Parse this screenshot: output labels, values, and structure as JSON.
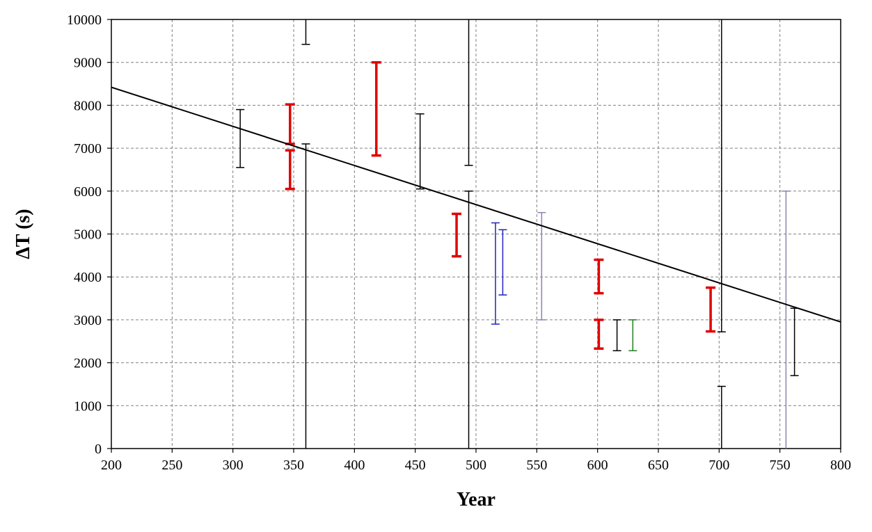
{
  "chart_data": {
    "type": "scatter",
    "title": "",
    "xlabel": "Year",
    "ylabel": "ΔT (s)",
    "xlim": [
      200,
      800
    ],
    "ylim": [
      0,
      10000
    ],
    "x_ticks": [
      200,
      250,
      300,
      350,
      400,
      450,
      500,
      550,
      600,
      650,
      700,
      750,
      800
    ],
    "y_ticks": [
      0,
      1000,
      2000,
      3000,
      4000,
      5000,
      6000,
      7000,
      8000,
      9000,
      10000
    ],
    "grid": true,
    "legend": "none",
    "trend_line": {
      "x": [
        200,
        800
      ],
      "y": [
        8420,
        2950
      ],
      "color": "#000000"
    },
    "series": [
      {
        "color": "#000000",
        "weight": "thin",
        "bars": [
          {
            "x": 306,
            "low": 6550,
            "high": 7900
          },
          {
            "x": 360,
            "low": 9420,
            "high": 10000
          },
          {
            "x": 360,
            "low": 0,
            "high": 7100
          },
          {
            "x": 454,
            "low": 6050,
            "high": 7800
          },
          {
            "x": 494,
            "low": 6600,
            "high": 10000
          },
          {
            "x": 494,
            "low": 0,
            "high": 6000
          },
          {
            "x": 616,
            "low": 2280,
            "high": 3000
          },
          {
            "x": 702,
            "low": 2720,
            "high": 10000
          },
          {
            "x": 702,
            "low": 0,
            "high": 1450
          },
          {
            "x": 762,
            "low": 1700,
            "high": 3270
          }
        ]
      },
      {
        "color": "#e00000",
        "weight": "thick",
        "bars": [
          {
            "x": 347,
            "low": 7100,
            "high": 8020
          },
          {
            "x": 347,
            "low": 6050,
            "high": 6950
          },
          {
            "x": 418,
            "low": 6830,
            "high": 9000
          },
          {
            "x": 484,
            "low": 4480,
            "high": 5470
          },
          {
            "x": 601,
            "low": 3620,
            "high": 4400
          },
          {
            "x": 601,
            "low": 2330,
            "high": 3000
          },
          {
            "x": 693,
            "low": 2730,
            "high": 3750
          }
        ]
      },
      {
        "color": "#2020c0",
        "weight": "thin",
        "bars": [
          {
            "x": 516,
            "low": 2900,
            "high": 5260
          },
          {
            "x": 522,
            "low": 3580,
            "high": 5100
          }
        ]
      },
      {
        "color": "#9080b0",
        "weight": "thin",
        "bars": [
          {
            "x": 554,
            "low": 3000,
            "high": 5500
          },
          {
            "x": 755,
            "low": 0,
            "high": 6000
          }
        ]
      },
      {
        "color": "#208020",
        "weight": "thin",
        "bars": [
          {
            "x": 629,
            "low": 2280,
            "high": 3000
          }
        ]
      }
    ]
  }
}
